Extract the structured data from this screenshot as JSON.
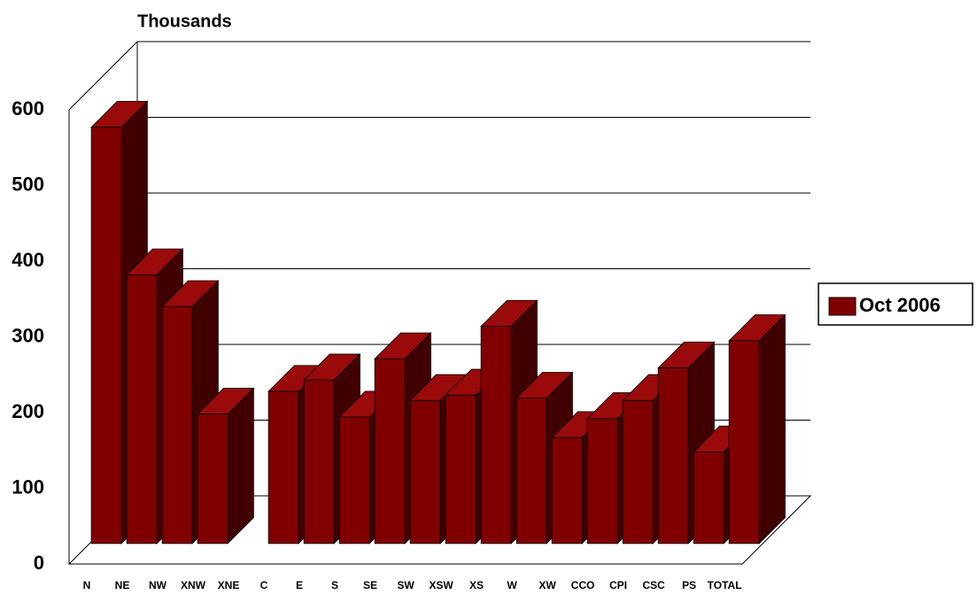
{
  "chart_data": {
    "type": "bar",
    "title": "Thousands",
    "categories": [
      "N",
      "NE",
      "NW",
      "XNW",
      "XNE",
      "C",
      "E",
      "S",
      "SE",
      "SW",
      "XSW",
      "XS",
      "W",
      "XW",
      "CCO",
      "CPI",
      "CSC",
      "PS",
      "TOTAL"
    ],
    "series": [
      {
        "name": "Oct 2006",
        "color": "#800000",
        "values": [
          550,
          355,
          313,
          171,
          null,
          201,
          216,
          167,
          244,
          189,
          196,
          287,
          192,
          140,
          165,
          189,
          232,
          121,
          268
        ]
      }
    ],
    "ylim": [
      0,
      600
    ],
    "yticks": [
      0,
      100,
      200,
      300,
      400,
      500,
      600
    ],
    "grid": true,
    "legend": "right"
  }
}
